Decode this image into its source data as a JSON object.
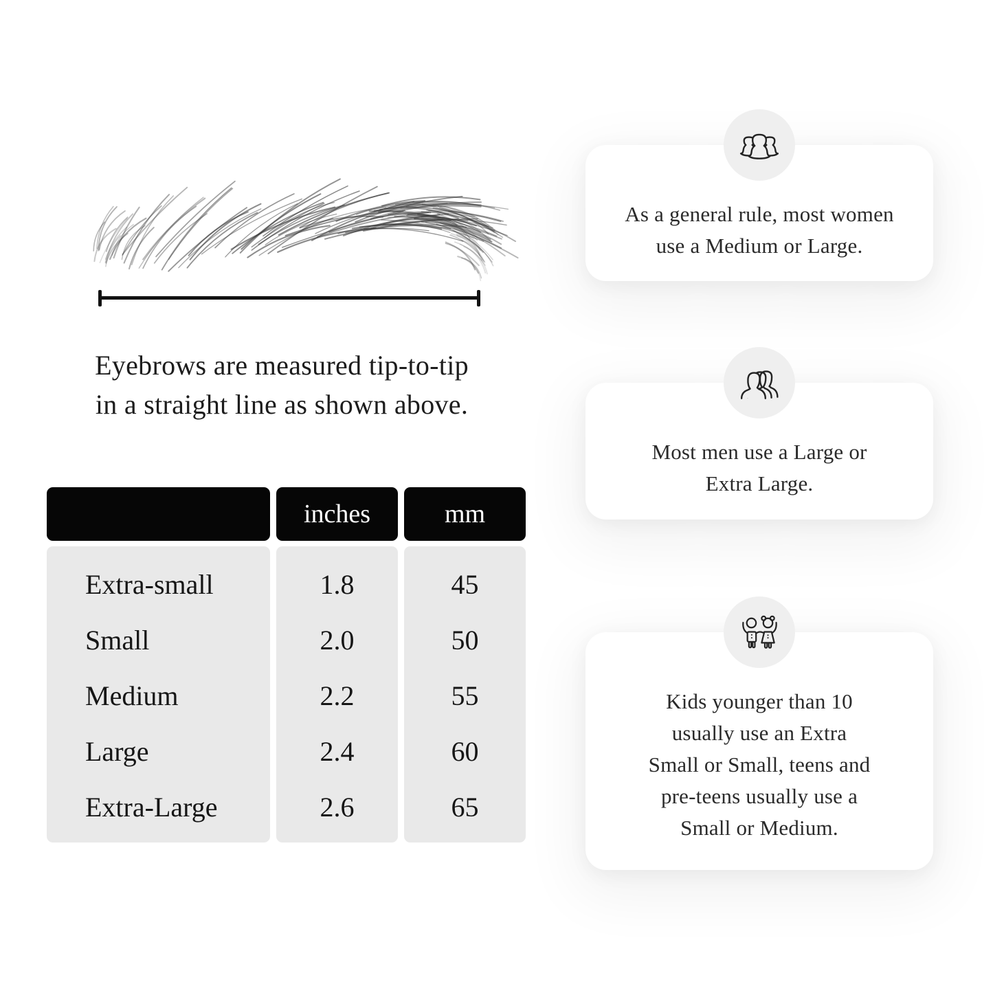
{
  "measurement": {
    "caption_lines": [
      "Eyebrows are measured tip-to-tip",
      "in a straight line as shown above."
    ]
  },
  "size_table": {
    "columns": [
      "",
      "inches",
      "mm"
    ],
    "rows": [
      {
        "label": "Extra-small",
        "inches": "1.8",
        "mm": "45"
      },
      {
        "label": "Small",
        "inches": "2.0",
        "mm": "50"
      },
      {
        "label": "Medium",
        "inches": "2.2",
        "mm": "55"
      },
      {
        "label": "Large",
        "inches": "2.4",
        "mm": "60"
      },
      {
        "label": "Extra-Large",
        "inches": "2.6",
        "mm": "65"
      }
    ]
  },
  "cards": [
    {
      "icon": "women-group-icon",
      "lines": [
        "As a general rule, most women",
        "use a Medium or Large."
      ]
    },
    {
      "icon": "men-group-icon",
      "lines": [
        "Most men use a Large or",
        "Extra Large."
      ]
    },
    {
      "icon": "kids-icon",
      "lines": [
        "Kids younger than 10",
        "usually use an Extra",
        "Small or Small, teens and",
        "pre-teens usually use a",
        "Small or Medium."
      ]
    }
  ],
  "colors": {
    "page_bg": "#ffffff",
    "table_header_bg": "#060606",
    "table_header_text": "#ffffff",
    "table_body_bg": "#e9e9e9",
    "icon_circle_bg": "#efefef",
    "card_bg": "#ffffff",
    "text": "#1d1d1d"
  }
}
